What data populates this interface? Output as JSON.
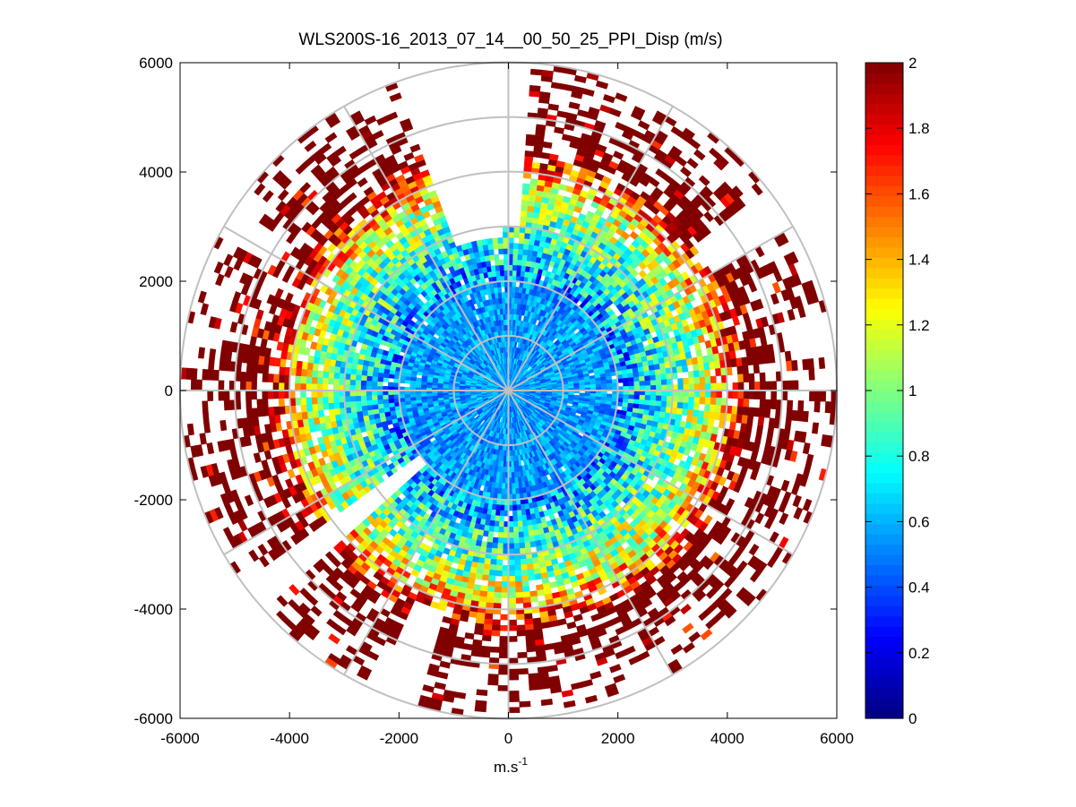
{
  "chart_data": {
    "type": "heatmap",
    "subtype": "polar-ppi",
    "title": "WLS200S-16_2013_07_14__00_50_25_PPI_Disp (m/s)",
    "xlabel": "m.s",
    "xlabel_superscript": "-1",
    "ylabel": "",
    "xlim": [
      -6000,
      6000
    ],
    "ylim": [
      -6000,
      6000
    ],
    "x_ticks": [
      "-6000",
      "-4000",
      "-2000",
      "0",
      "2000",
      "4000",
      "6000"
    ],
    "y_ticks": [
      "6000",
      "4000",
      "2000",
      "0",
      "-2000",
      "-4000",
      "-6000"
    ],
    "polar_grid": {
      "range_rings": [
        1000,
        2000,
        3000,
        4000,
        5000,
        6000
      ],
      "spoke_step_deg": 30
    },
    "colorbar": {
      "colormap": "jet",
      "range": [
        0,
        2
      ],
      "ticks": [
        "0",
        "0.2",
        "0.4",
        "0.6",
        "0.8",
        "1",
        "1.2",
        "1.4",
        "1.6",
        "1.8",
        "2"
      ]
    },
    "range_max": 6000,
    "azimuth_step_deg": 2,
    "range_step": 100,
    "mean_value_by_range": [
      {
        "range": 0,
        "value": 0.55
      },
      {
        "range": 2000,
        "value": 0.55
      },
      {
        "range": 3000,
        "value": 0.9
      },
      {
        "range": 3600,
        "value": 1.15
      },
      {
        "range": 4300,
        "value": 1.9
      },
      {
        "range": 6000,
        "value": 2.0
      }
    ],
    "missing_fraction_by_range": [
      {
        "range": 0,
        "value": 0.0
      },
      {
        "range": 3000,
        "value": 0.03
      },
      {
        "range": 4000,
        "value": 0.2
      },
      {
        "range": 5000,
        "value": 0.5
      },
      {
        "range": 6000,
        "value": 0.8
      }
    ],
    "empty_sectors_deg": [
      {
        "from": 340,
        "to": 357,
        "min_range": 2800
      },
      {
        "from": 358,
        "to": 4,
        "min_range": 3000
      },
      {
        "from": 52,
        "to": 60,
        "min_range": 4300
      },
      {
        "from": 76,
        "to": 84,
        "min_range": 5200
      },
      {
        "from": 196,
        "to": 203,
        "min_range": 4200
      },
      {
        "from": 228,
        "to": 233,
        "min_range": 2000
      },
      {
        "from": 298,
        "to": 304,
        "min_range": 4800
      }
    ]
  }
}
